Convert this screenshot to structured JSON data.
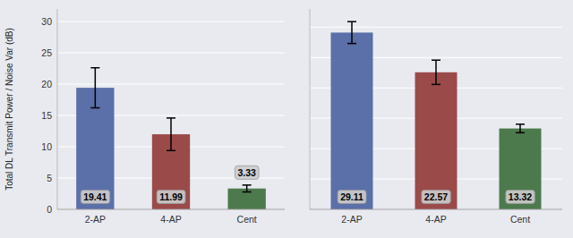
{
  "chart_data": [
    {
      "type": "bar",
      "categories": [
        "2-AP",
        "4-AP",
        "Cent"
      ],
      "values": [
        19.41,
        11.99,
        3.33
      ],
      "errors_up": [
        3.2,
        2.6,
        0.55
      ],
      "errors_down": [
        3.2,
        2.6,
        0.55
      ],
      "colors": [
        "#5b6fa8",
        "#9b4a4a",
        "#4d7a4d"
      ],
      "ylabel": "Total DL Transmit Power / Noise Var (dB)",
      "ylim": [
        0,
        32
      ],
      "yticks": [
        0,
        5,
        10,
        15,
        20,
        25,
        30
      ],
      "grid": true,
      "data_labels": true
    },
    {
      "type": "bar",
      "categories": [
        "2-AP",
        "4-AP",
        "Cent"
      ],
      "values": [
        29.11,
        22.57,
        13.32
      ],
      "errors_up": [
        1.8,
        2.0,
        0.7
      ],
      "errors_down": [
        1.8,
        2.0,
        0.7
      ],
      "colors": [
        "#5b6fa8",
        "#9b4a4a",
        "#4d7a4d"
      ],
      "ylim": [
        0,
        33
      ],
      "yticks": [
        0,
        5,
        10,
        15,
        20,
        25,
        30
      ],
      "grid": true,
      "data_labels": true,
      "tick_labels": "x"
    }
  ]
}
